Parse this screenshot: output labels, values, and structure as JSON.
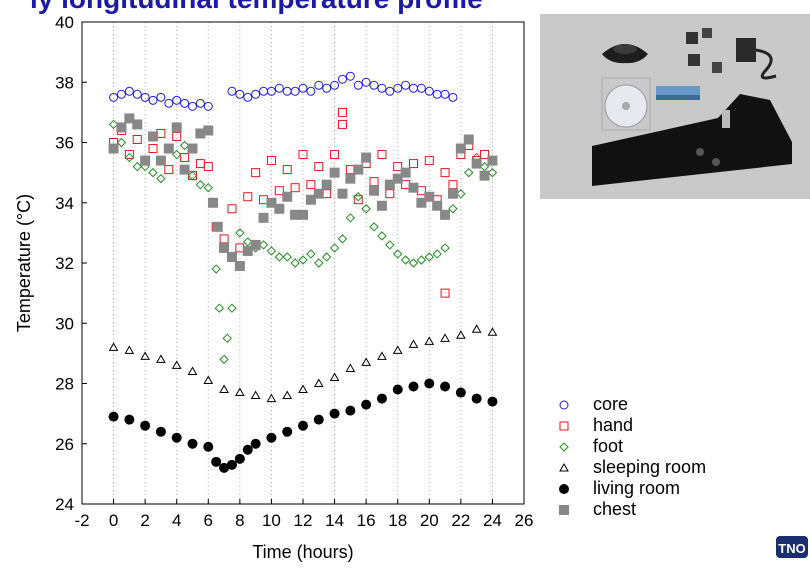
{
  "title_fragment": "ly longitudinal temperature profile",
  "logo_text": "TNO",
  "chart_data": {
    "type": "scatter",
    "title": "",
    "xlabel": "Time (hours)",
    "ylabel": "Temperature (°C)",
    "xlim": [
      -2,
      26
    ],
    "ylim": [
      24,
      40
    ],
    "xticks": [
      "-2",
      "0",
      "2",
      "4",
      "6",
      "8",
      "10",
      "12",
      "14",
      "16",
      "18",
      "20",
      "22",
      "24",
      "26"
    ],
    "yticks": [
      "24",
      "26",
      "28",
      "30",
      "32",
      "34",
      "36",
      "38",
      "40"
    ],
    "grid": "vertical dotted",
    "legend_position": "bottom-right",
    "series": [
      {
        "name": "core",
        "marker": "circle-open",
        "color": "#1f1fd6",
        "x": [
          0,
          0.5,
          1,
          1.5,
          2,
          2.5,
          3,
          3.5,
          4,
          4.5,
          5,
          5.5,
          6,
          7.5,
          8,
          8.5,
          9,
          9.5,
          10,
          10.5,
          11,
          11.5,
          12,
          12.5,
          13,
          13.5,
          14,
          14.5,
          15,
          15.5,
          16,
          16.5,
          17,
          17.5,
          18,
          18.5,
          19,
          19.5,
          20,
          20.5,
          21,
          21.5
        ],
        "y": [
          37.5,
          37.6,
          37.7,
          37.6,
          37.5,
          37.4,
          37.5,
          37.3,
          37.4,
          37.3,
          37.2,
          37.3,
          37.2,
          37.7,
          37.6,
          37.5,
          37.6,
          37.7,
          37.7,
          37.8,
          37.7,
          37.7,
          37.8,
          37.7,
          37.9,
          37.8,
          37.9,
          38.1,
          38.2,
          37.9,
          38.0,
          37.9,
          37.8,
          37.7,
          37.8,
          37.9,
          37.8,
          37.8,
          37.7,
          37.6,
          37.6,
          37.5
        ]
      },
      {
        "name": "hand",
        "marker": "square-open",
        "color": "#e0181b",
        "x": [
          0,
          0.5,
          1,
          1.5,
          2,
          2.5,
          3,
          3.5,
          4,
          4.5,
          5,
          5.5,
          6,
          6.5,
          7,
          7.5,
          8,
          8.5,
          9,
          9.5,
          10,
          10.5,
          11,
          11.5,
          12,
          12.5,
          13,
          13.5,
          14,
          14.5,
          15,
          15.5,
          16,
          16.5,
          17,
          17.5,
          18,
          18.5,
          19,
          19.5,
          20,
          20.5,
          21,
          21.5,
          22,
          22.5,
          23,
          23.5,
          24,
          14.5,
          21
        ],
        "y": [
          36.0,
          36.4,
          35.6,
          36.1,
          35.4,
          35.8,
          36.3,
          35.1,
          36.2,
          35.5,
          34.9,
          35.3,
          35.2,
          33.2,
          32.8,
          33.8,
          32.5,
          34.2,
          35.0,
          34.1,
          35.4,
          34.4,
          35.1,
          34.5,
          35.6,
          34.6,
          35.2,
          34.3,
          35.6,
          36.6,
          35.1,
          34.1,
          35.3,
          34.7,
          35.6,
          34.3,
          35.2,
          34.6,
          35.3,
          34.4,
          35.4,
          34.1,
          35.0,
          34.6,
          35.6,
          35.9,
          35.4,
          35.6,
          35.4,
          37.0,
          31.0
        ]
      },
      {
        "name": "foot",
        "marker": "diamond-open",
        "color": "#1f8f1f",
        "x": [
          0,
          0.5,
          1,
          1.5,
          2,
          2.5,
          3,
          3.5,
          4,
          4.5,
          5,
          5.5,
          6,
          6.5,
          6.7,
          7,
          7.2,
          7.5,
          8,
          8.5,
          9,
          9.5,
          10,
          10.5,
          11,
          11.5,
          12,
          12.5,
          13,
          13.5,
          14,
          14.5,
          15,
          15.5,
          16,
          16.5,
          17,
          17.5,
          18,
          18.5,
          19,
          19.5,
          20,
          20.5,
          21,
          21.5,
          22,
          22.5,
          23,
          23.5,
          24
        ],
        "y": [
          36.6,
          36.0,
          35.5,
          35.2,
          35.2,
          35.0,
          34.8,
          35.8,
          35.6,
          35.9,
          34.9,
          34.6,
          34.5,
          31.8,
          30.5,
          28.8,
          29.5,
          30.5,
          33.0,
          32.7,
          32.5,
          32.6,
          32.4,
          32.2,
          32.2,
          32.0,
          32.1,
          32.3,
          32.0,
          32.2,
          32.5,
          32.8,
          33.5,
          34.2,
          33.8,
          33.2,
          32.9,
          32.6,
          32.3,
          32.1,
          32.0,
          32.1,
          32.2,
          32.3,
          32.5,
          33.8,
          34.3,
          35.0,
          35.5,
          35.2,
          35.0
        ]
      },
      {
        "name": "sleeping room",
        "marker": "triangle-open",
        "color": "#000000",
        "x": [
          0,
          1,
          2,
          3,
          4,
          5,
          6,
          7,
          8,
          9,
          10,
          11,
          12,
          13,
          14,
          15,
          16,
          17,
          18,
          19,
          20,
          21,
          22,
          23,
          24
        ],
        "y": [
          29.2,
          29.1,
          28.9,
          28.8,
          28.6,
          28.4,
          28.1,
          27.8,
          27.7,
          27.6,
          27.5,
          27.6,
          27.8,
          28.0,
          28.2,
          28.5,
          28.7,
          28.9,
          29.1,
          29.3,
          29.4,
          29.5,
          29.6,
          29.8,
          29.7
        ]
      },
      {
        "name": "living room",
        "marker": "circle-filled",
        "color": "#000000",
        "x": [
          0,
          1,
          2,
          3,
          4,
          5,
          6,
          6.5,
          7,
          7.5,
          8,
          8.5,
          9,
          10,
          11,
          12,
          13,
          14,
          15,
          16,
          17,
          18,
          19,
          20,
          21,
          22,
          23,
          24
        ],
        "y": [
          26.9,
          26.8,
          26.6,
          26.4,
          26.2,
          26.0,
          25.9,
          25.4,
          25.2,
          25.3,
          25.5,
          25.8,
          26.0,
          26.2,
          26.4,
          26.6,
          26.8,
          27.0,
          27.1,
          27.3,
          27.5,
          27.8,
          27.9,
          28.0,
          27.9,
          27.7,
          27.5,
          27.4
        ]
      },
      {
        "name": "chest",
        "marker": "square-filled",
        "color": "#888888",
        "x": [
          0,
          0.5,
          1,
          1.5,
          2,
          2.5,
          3,
          3.5,
          4,
          4.5,
          5,
          5.5,
          6,
          6.3,
          6.6,
          7,
          7.5,
          8,
          8.5,
          9,
          9.5,
          10,
          10.5,
          11,
          11.5,
          12,
          12.5,
          13,
          13.5,
          14,
          14.5,
          15,
          15.5,
          16,
          16.5,
          17,
          17.5,
          18,
          18.5,
          19,
          19.5,
          20,
          20.5,
          21,
          21.5,
          22,
          22.5,
          23,
          23.5,
          24
        ],
        "y": [
          35.8,
          36.5,
          36.8,
          36.6,
          35.4,
          36.2,
          35.4,
          35.8,
          36.5,
          35.1,
          35.8,
          36.3,
          36.4,
          34.0,
          33.2,
          32.5,
          32.2,
          31.9,
          32.4,
          32.6,
          33.5,
          34.0,
          33.8,
          34.2,
          33.6,
          33.6,
          34.1,
          34.3,
          34.6,
          35.0,
          34.3,
          34.8,
          35.1,
          35.5,
          34.4,
          33.9,
          34.6,
          34.8,
          35.0,
          34.5,
          34.0,
          34.2,
          33.9,
          33.6,
          34.3,
          35.8,
          36.1,
          35.3,
          34.9,
          35.4
        ]
      }
    ]
  }
}
